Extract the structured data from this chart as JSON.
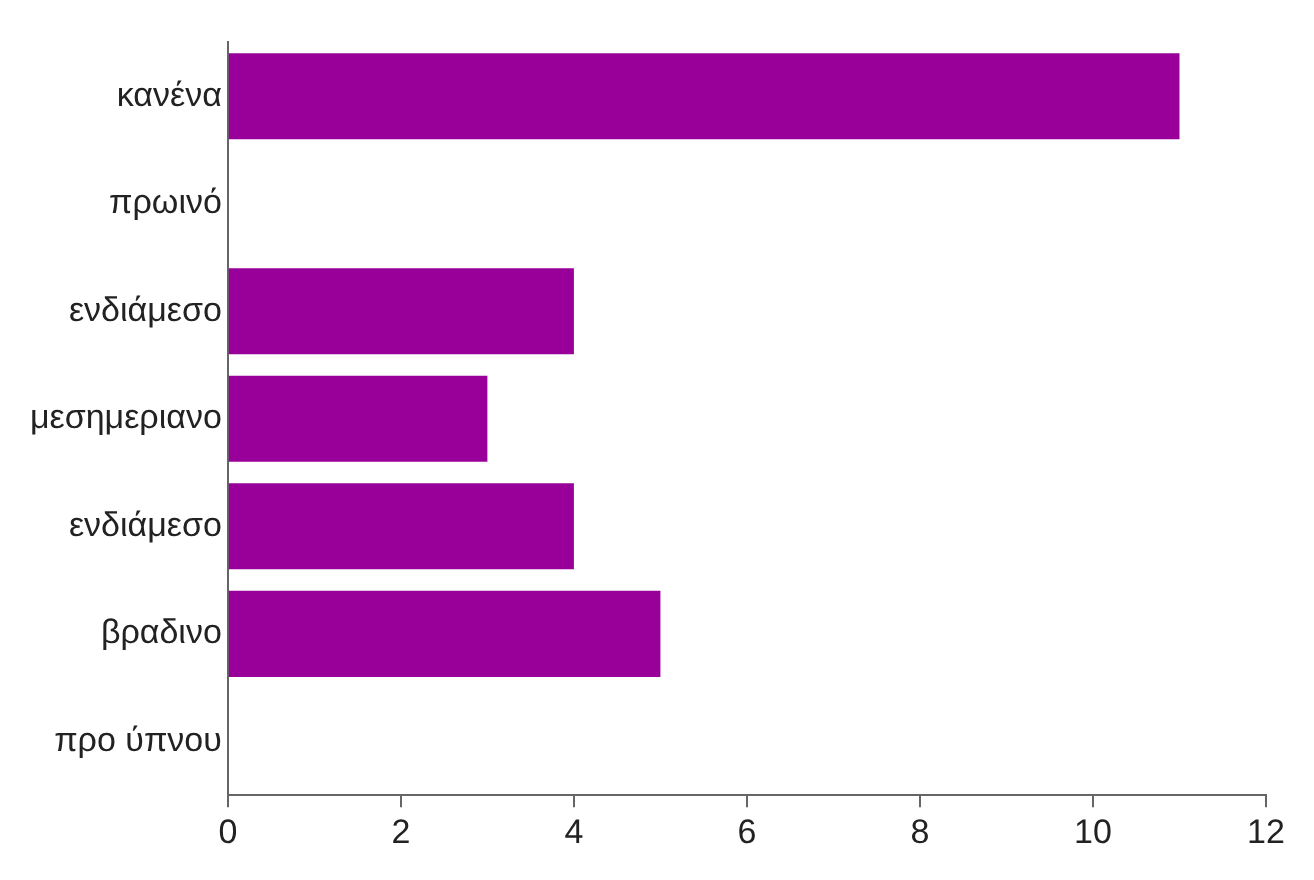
{
  "chart_data": {
    "type": "bar",
    "orientation": "horizontal",
    "categories": [
      "κανένα",
      "πρωινό",
      "ενδιάμεσο",
      "μεσημεριανο",
      "ενδιάμεσο",
      "βραδινο",
      "προ ύπνου"
    ],
    "values": [
      11,
      0,
      4,
      3,
      4,
      5,
      0
    ],
    "color": "#990099",
    "xlim": [
      0,
      12
    ],
    "xticks": [
      0,
      2,
      4,
      6,
      8,
      10,
      12
    ],
    "grid": false,
    "legend": false
  }
}
